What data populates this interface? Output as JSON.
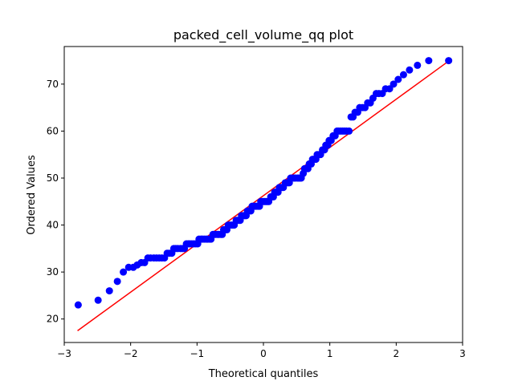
{
  "chart_data": {
    "type": "scatter",
    "title": "packed_cell_volume_qq plot",
    "xlabel": "Theoretical quantiles",
    "ylabel": "Ordered Values",
    "xlim": [
      -3.0,
      3.0
    ],
    "ylim": [
      15,
      78
    ],
    "xticks": [
      -3,
      -2,
      -1,
      0,
      1,
      2,
      3
    ],
    "xtick_labels": [
      "−3",
      "−2",
      "−1",
      "0",
      "1",
      "2",
      "3"
    ],
    "yticks": [
      20,
      30,
      40,
      50,
      60,
      70
    ],
    "ytick_labels": [
      "20",
      "30",
      "40",
      "50",
      "60",
      "70"
    ],
    "grid": false,
    "legend": false,
    "colors": {
      "points": "#0000ff",
      "fit_line": "#ff0000"
    },
    "fit_line": {
      "x": [
        -2.8,
        2.8
      ],
      "y": [
        17.5,
        75
      ]
    },
    "points": [
      [
        -2.79,
        23
      ],
      [
        -2.49,
        24
      ],
      [
        -2.32,
        26
      ],
      [
        -2.2,
        28
      ],
      [
        -2.11,
        30
      ],
      [
        -2.03,
        31
      ],
      [
        -1.96,
        31
      ],
      [
        -1.9,
        31.5
      ],
      [
        -1.84,
        32
      ],
      [
        -1.79,
        32
      ],
      [
        -1.74,
        33
      ],
      [
        -1.7,
        33
      ],
      [
        -1.65,
        33
      ],
      [
        -1.61,
        33
      ],
      [
        -1.57,
        33
      ],
      [
        -1.53,
        33
      ],
      [
        -1.49,
        33
      ],
      [
        -1.45,
        34
      ],
      [
        -1.42,
        34
      ],
      [
        -1.38,
        34
      ],
      [
        -1.35,
        35
      ],
      [
        -1.32,
        35
      ],
      [
        -1.29,
        35
      ],
      [
        -1.25,
        35
      ],
      [
        -1.22,
        35
      ],
      [
        -1.19,
        35
      ],
      [
        -1.16,
        36
      ],
      [
        -1.13,
        36
      ],
      [
        -1.11,
        36
      ],
      [
        -1.08,
        36
      ],
      [
        -1.05,
        36
      ],
      [
        -1.02,
        36
      ],
      [
        -0.99,
        36
      ],
      [
        -0.97,
        37
      ],
      [
        -0.94,
        37
      ],
      [
        -0.92,
        37
      ],
      [
        -0.89,
        37
      ],
      [
        -0.86,
        37
      ],
      [
        -0.84,
        37
      ],
      [
        -0.81,
        37
      ],
      [
        -0.79,
        37
      ],
      [
        -0.76,
        38
      ],
      [
        -0.74,
        38
      ],
      [
        -0.72,
        38
      ],
      [
        -0.69,
        38
      ],
      [
        -0.67,
        38
      ],
      [
        -0.64,
        38
      ],
      [
        -0.62,
        38
      ],
      [
        -0.6,
        39
      ],
      [
        -0.57,
        39
      ],
      [
        -0.55,
        39
      ],
      [
        -0.53,
        40
      ],
      [
        -0.51,
        40
      ],
      [
        -0.48,
        40
      ],
      [
        -0.46,
        40
      ],
      [
        -0.44,
        40
      ],
      [
        -0.41,
        41
      ],
      [
        -0.39,
        41
      ],
      [
        -0.37,
        41
      ],
      [
        -0.35,
        41
      ],
      [
        -0.33,
        42
      ],
      [
        -0.3,
        42
      ],
      [
        -0.28,
        42
      ],
      [
        -0.26,
        42
      ],
      [
        -0.24,
        43
      ],
      [
        -0.22,
        43
      ],
      [
        -0.19,
        43
      ],
      [
        -0.17,
        44
      ],
      [
        -0.15,
        44
      ],
      [
        -0.13,
        44
      ],
      [
        -0.11,
        44
      ],
      [
        -0.08,
        44
      ],
      [
        -0.06,
        44
      ],
      [
        -0.04,
        45
      ],
      [
        -0.02,
        45
      ],
      [
        0.0,
        45
      ],
      [
        0.02,
        45
      ],
      [
        0.04,
        45
      ],
      [
        0.06,
        45
      ],
      [
        0.08,
        45
      ],
      [
        0.11,
        46
      ],
      [
        0.13,
        46
      ],
      [
        0.15,
        46
      ],
      [
        0.17,
        47
      ],
      [
        0.19,
        47
      ],
      [
        0.22,
        47
      ],
      [
        0.24,
        48
      ],
      [
        0.26,
        48
      ],
      [
        0.28,
        48
      ],
      [
        0.3,
        48
      ],
      [
        0.33,
        49
      ],
      [
        0.35,
        49
      ],
      [
        0.37,
        49
      ],
      [
        0.39,
        49
      ],
      [
        0.41,
        50
      ],
      [
        0.44,
        50
      ],
      [
        0.46,
        50
      ],
      [
        0.48,
        50
      ],
      [
        0.51,
        50
      ],
      [
        0.53,
        50
      ],
      [
        0.55,
        50
      ],
      [
        0.57,
        50
      ],
      [
        0.6,
        51
      ],
      [
        0.62,
        52
      ],
      [
        0.64,
        52
      ],
      [
        0.67,
        52
      ],
      [
        0.69,
        53
      ],
      [
        0.72,
        53
      ],
      [
        0.74,
        54
      ],
      [
        0.76,
        54
      ],
      [
        0.79,
        54
      ],
      [
        0.81,
        55
      ],
      [
        0.84,
        55
      ],
      [
        0.86,
        55
      ],
      [
        0.89,
        56
      ],
      [
        0.92,
        56
      ],
      [
        0.94,
        57
      ],
      [
        0.97,
        57
      ],
      [
        0.99,
        58
      ],
      [
        1.02,
        58
      ],
      [
        1.05,
        59
      ],
      [
        1.08,
        59
      ],
      [
        1.11,
        60
      ],
      [
        1.13,
        60
      ],
      [
        1.16,
        60
      ],
      [
        1.19,
        60
      ],
      [
        1.22,
        60
      ],
      [
        1.25,
        60
      ],
      [
        1.29,
        60
      ],
      [
        1.32,
        63
      ],
      [
        1.35,
        63
      ],
      [
        1.38,
        64
      ],
      [
        1.42,
        64
      ],
      [
        1.45,
        65
      ],
      [
        1.49,
        65
      ],
      [
        1.53,
        65
      ],
      [
        1.57,
        66
      ],
      [
        1.61,
        66
      ],
      [
        1.65,
        67
      ],
      [
        1.7,
        68
      ],
      [
        1.74,
        68
      ],
      [
        1.79,
        68
      ],
      [
        1.84,
        69
      ],
      [
        1.9,
        69
      ],
      [
        1.96,
        70
      ],
      [
        2.03,
        71
      ],
      [
        2.11,
        72
      ],
      [
        2.2,
        73
      ],
      [
        2.32,
        74
      ],
      [
        2.49,
        75
      ],
      [
        2.79,
        75
      ]
    ]
  }
}
